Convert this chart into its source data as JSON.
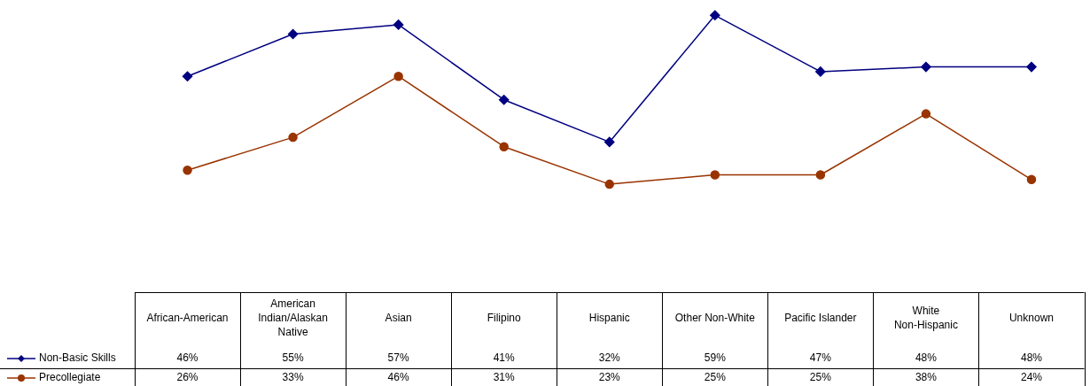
{
  "chart_data": {
    "type": "line",
    "categories": [
      "African-American",
      "American Indian/Alaskan Native",
      "Asian",
      "Filipino",
      "Hispanic",
      "Other Non-White",
      "Pacific Islander",
      "White Non-Hispanic",
      "Unknown"
    ],
    "series": [
      {
        "name": "Non-Basic Skills",
        "color": "#000080",
        "marker": "diamond",
        "values": [
          46,
          55,
          57,
          41,
          32,
          59,
          47,
          48,
          48
        ],
        "value_labels": [
          "46%",
          "55%",
          "57%",
          "41%",
          "32%",
          "59%",
          "47%",
          "48%",
          "48%"
        ]
      },
      {
        "name": "Precollegiate",
        "color": "#993300",
        "marker": "circle",
        "values": [
          26,
          33,
          46,
          31,
          23,
          25,
          25,
          38,
          24
        ],
        "value_labels": [
          "26%",
          "33%",
          "46%",
          "31%",
          "23%",
          "25%",
          "25%",
          "38%",
          "24%"
        ]
      }
    ],
    "legend": "bottom left",
    "tick_labels": false
  }
}
